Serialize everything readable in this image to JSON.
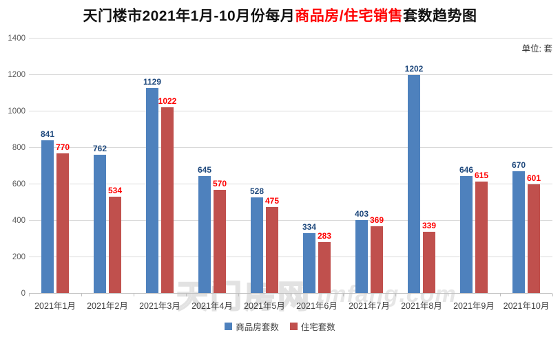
{
  "title": {
    "prefix": "天门楼市2021年1月-10月份每月",
    "highlight": "商品房/住宅销售",
    "suffix": "套数趋势图"
  },
  "unit_label": "单位: 套",
  "watermark": {
    "cjk": "天门房网",
    "latin": "tmfang.com"
  },
  "chart_data": {
    "type": "bar",
    "title": "天门楼市2021年1月-10月份每月商品房/住宅销售套数趋势图",
    "unit": "套",
    "categories": [
      "2021年1月",
      "2021年2月",
      "2021年3月",
      "2021年4月",
      "2021年5月",
      "2021年6月",
      "2021年7月",
      "2021年8月",
      "2021年9月",
      "2021年10月"
    ],
    "series": [
      {
        "name": "商品房套数",
        "color": "#4E81BD",
        "label_color": "#1F497D",
        "values": [
          841,
          762,
          1129,
          645,
          528,
          334,
          403,
          1202,
          646,
          670
        ]
      },
      {
        "name": "住宅套数",
        "color": "#C0504D",
        "label_color": "#FF0000",
        "values": [
          770,
          534,
          1022,
          570,
          475,
          283,
          369,
          339,
          615,
          601
        ]
      }
    ],
    "ylim": [
      0,
      1400
    ],
    "yticks": [
      0,
      200,
      400,
      600,
      800,
      1000,
      1200,
      1400
    ],
    "grid": true,
    "legend_position": "bottom",
    "gridline_color": "#D9D9D9",
    "axis_color": "#BFBFBF"
  }
}
